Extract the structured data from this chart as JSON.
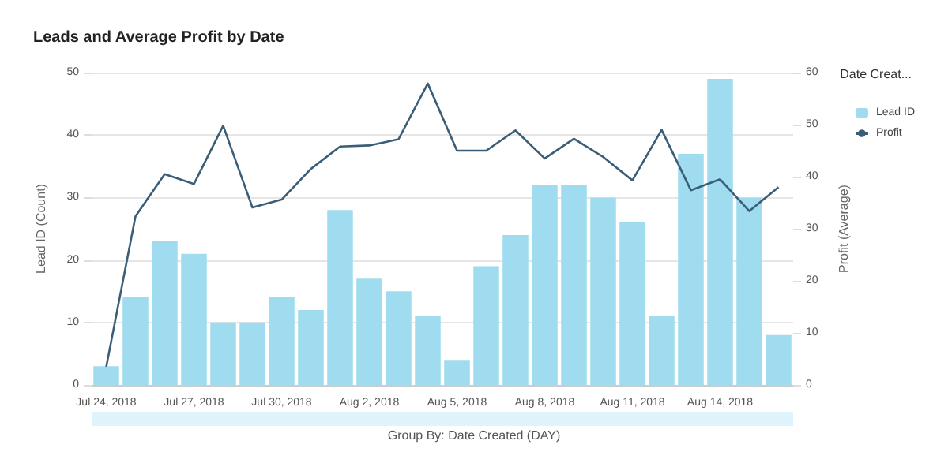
{
  "chart_data": {
    "type": "bar",
    "title": "Leads and Average Profit by Date",
    "ylabel": "Lead ID (Count)",
    "y2label": "Profit (Average)",
    "legend_title": "Date Creat...",
    "categories": [
      "Jul 24, 2018",
      null,
      null,
      "Jul 27, 2018",
      null,
      null,
      "Jul 30, 2018",
      null,
      null,
      "Aug 2, 2018",
      null,
      null,
      "Aug 5, 2018",
      null,
      null,
      "Aug 8, 2018",
      null,
      null,
      "Aug 11, 2018",
      null,
      null,
      "Aug 14, 2018",
      null,
      null
    ],
    "series": [
      {
        "name": "Lead ID",
        "color": "#a0dcef",
        "values": [
          3,
          14,
          23,
          21,
          10,
          10,
          14,
          12,
          28,
          17,
          15,
          11,
          4,
          19,
          24,
          32,
          32,
          30,
          26,
          11,
          37,
          49,
          30,
          8
        ]
      },
      {
        "name": "Profit",
        "type": "line",
        "axis": "y2",
        "color": "#3b5e78",
        "values": [
          3.5,
          32.4,
          40.5,
          38.6,
          49.8,
          34.1,
          35.6,
          41.5,
          45.8,
          46.0,
          47.2,
          57.9,
          45.0,
          45.0,
          48.9,
          43.5,
          47.3,
          43.8,
          39.3,
          49.0,
          37.4,
          39.5,
          33.4,
          38.0
        ]
      }
    ],
    "ylim": [
      0,
      50
    ],
    "yticks": [
      0,
      10,
      20,
      30,
      40,
      50
    ],
    "y2lim": [
      0,
      60
    ],
    "y2ticks": [
      0,
      10,
      20,
      30,
      40,
      50,
      60
    ],
    "grid": "y",
    "legend": "top right",
    "marker": "none",
    "annotations": [
      "Group By: Date Created (DAY)"
    ]
  }
}
